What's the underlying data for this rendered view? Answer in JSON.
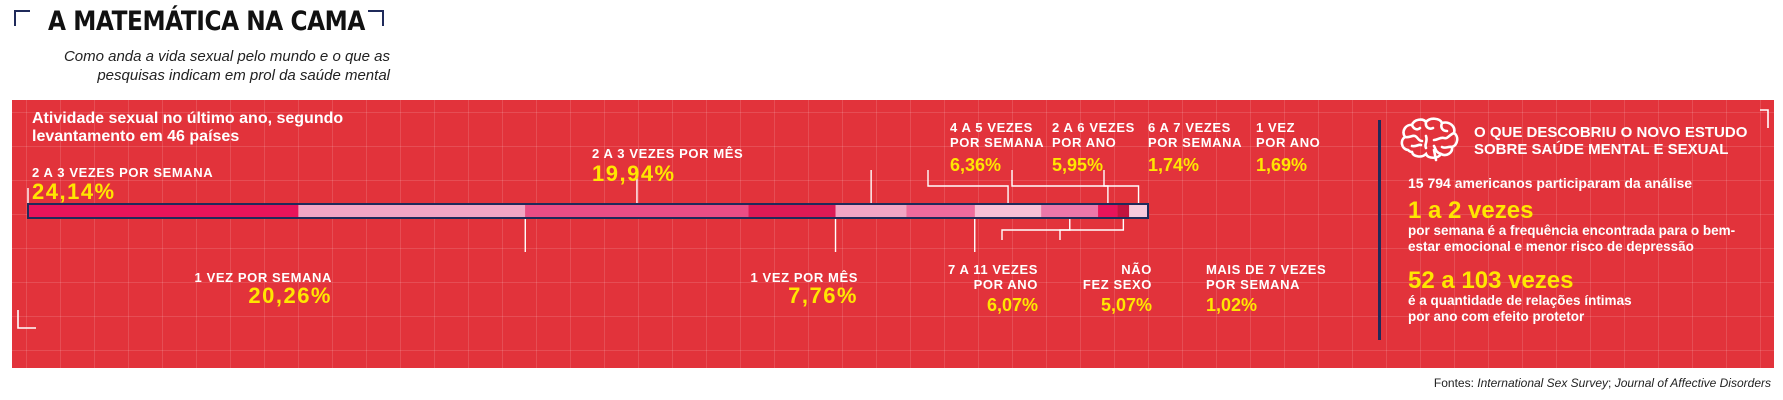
{
  "header": {
    "title": "A MATEMÁTICA NA CAMA",
    "subtitle": "Como anda a vida sexual pelo mundo e o que as pesquisas indicam em prol da saúde mental"
  },
  "chart_data": {
    "type": "bar",
    "title": "Atividade sexual no último ano, segundo levantamento em 46 países",
    "unit": "%",
    "stacked": true,
    "orientation": "horizontal",
    "series": [
      {
        "name": "2 A 3 VEZES POR SEMANA",
        "value": 24.14,
        "display": "24,14%",
        "color": "#e8145a"
      },
      {
        "name": "1 VEZ POR SEMANA",
        "value": 20.26,
        "display": "20,26%",
        "color": "#f2a5c4"
      },
      {
        "name": "2 A 3 VEZES POR MÊS",
        "value": 19.94,
        "display": "19,94%",
        "color": "#ea4d85"
      },
      {
        "name": "1 VEZ POR MÊS",
        "value": 7.76,
        "display": "7,76%",
        "color": "#dd1a55"
      },
      {
        "name": "4 A 5 VEZES POR SEMANA",
        "value": 6.36,
        "display": "6,36%",
        "color": "#f2a5c4"
      },
      {
        "name": "7 A 11 VEZES POR ANO",
        "value": 6.07,
        "display": "6,07%",
        "color": "#ef6b9d"
      },
      {
        "name": "2 A 6 VEZES POR ANO",
        "value": 5.95,
        "display": "5,95%",
        "color": "#f7bfd6"
      },
      {
        "name": "NÃO FEZ SEXO",
        "value": 5.07,
        "display": "5,07%",
        "color": "#ec77a9"
      },
      {
        "name": "6 A 7 VEZES POR SEMANA",
        "value": 1.74,
        "display": "1,74%",
        "color": "#e8145a"
      },
      {
        "name": "MAIS DE 7 VEZES POR SEMANA",
        "value": 1.02,
        "display": "1,02%",
        "color": "#c3133f"
      },
      {
        "name": "1 VEZ POR ANO",
        "value": 1.69,
        "display": "1,69%",
        "color": "#f7c9dc"
      }
    ]
  },
  "labels": {
    "s0": [
      "2 A 3 VEZES POR SEMANA"
    ],
    "s1": [
      "1 VEZ POR SEMANA"
    ],
    "s2": [
      "2 A 3 VEZES POR MÊS"
    ],
    "s3": [
      "1 VEZ POR MÊS"
    ],
    "s4": [
      "4 A 5 VEZES",
      "POR SEMANA"
    ],
    "s5": [
      "7 A 11 VEZES",
      "POR ANO"
    ],
    "s6": [
      "2 A 6 VEZES",
      "POR ANO"
    ],
    "s7": [
      "NÃO",
      "FEZ SEXO"
    ],
    "s8": [
      "6 A 7 VEZES",
      "POR SEMANA"
    ],
    "s9": [
      "MAIS DE 7 VEZES",
      "POR SEMANA"
    ],
    "s10": [
      "1 VEZ",
      "POR ANO"
    ]
  },
  "study": {
    "title": "O QUE DESCOBRIU O NOVO ESTUDO SOBRE SAÚDE MENTAL E SEXUAL",
    "participants": "15 794 americanos participaram da análise",
    "highlight1": "1 a 2 vezes",
    "desc1": "por semana é a frequência encontrada para o bem-estar emocional e menor risco de depressão",
    "highlight2": "52 a 103 vezes",
    "desc2": "é a quantidade de relações íntimas por ano com efeito protetor",
    "icon": "brain-icon"
  },
  "footer": {
    "sources_prefix": "Fontes: ",
    "sources_1": "International Sex Survey",
    "sources_sep": "; ",
    "sources_2": "Journal of Affective Disorders"
  },
  "colors": {
    "panel": "#e2333b",
    "accent": "#ffe600",
    "navy": "#1f2a5a"
  }
}
